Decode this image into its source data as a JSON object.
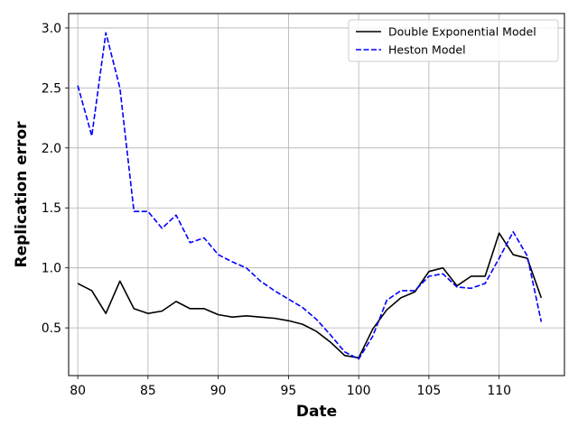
{
  "chart_data": {
    "type": "line",
    "xlabel": "Date",
    "ylabel": "Replication error",
    "xlim": [
      79.35,
      114.65
    ],
    "ylim": [
      0.102,
      3.12
    ],
    "xticks": [
      80,
      85,
      90,
      95,
      100,
      105,
      110
    ],
    "yticks": [
      0.5,
      1.0,
      1.5,
      2.0,
      2.5,
      3.0
    ],
    "grid": true,
    "legend_position": "top-right",
    "x": [
      80,
      81,
      82,
      83,
      84,
      85,
      86,
      87,
      88,
      89,
      90,
      91,
      92,
      93,
      94,
      95,
      96,
      97,
      98,
      99,
      100,
      101,
      102,
      103,
      104,
      105,
      106,
      107,
      108,
      109,
      110,
      111,
      112,
      113
    ],
    "series": [
      {
        "name": "Double Exponential Model",
        "color": "#000000",
        "style": "solid",
        "values": [
          0.87,
          0.81,
          0.62,
          0.89,
          0.66,
          0.62,
          0.64,
          0.72,
          0.66,
          0.66,
          0.61,
          0.59,
          0.6,
          0.59,
          0.58,
          0.56,
          0.53,
          0.47,
          0.38,
          0.27,
          0.25,
          0.49,
          0.65,
          0.75,
          0.8,
          0.97,
          1.0,
          0.85,
          0.93,
          0.93,
          1.29,
          1.11,
          1.08,
          0.75
        ]
      },
      {
        "name": "Heston Model",
        "color": "#0000ff",
        "style": "dashed",
        "values": [
          2.52,
          2.1,
          2.96,
          2.5,
          1.47,
          1.47,
          1.33,
          1.44,
          1.21,
          1.25,
          1.11,
          1.05,
          1.0,
          0.89,
          0.81,
          0.74,
          0.67,
          0.57,
          0.44,
          0.3,
          0.24,
          0.43,
          0.73,
          0.81,
          0.81,
          0.93,
          0.95,
          0.84,
          0.83,
          0.87,
          1.08,
          1.3,
          1.1,
          0.55
        ]
      }
    ]
  }
}
